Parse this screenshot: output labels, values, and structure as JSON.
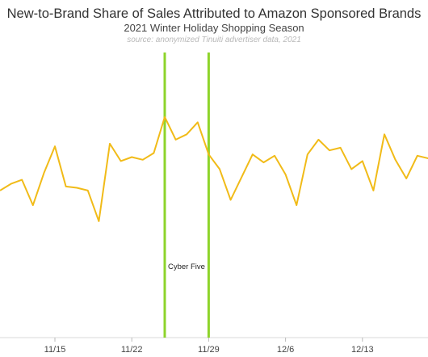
{
  "chart_data": {
    "type": "line",
    "title": "New-to-Brand Share of Sales Attributed to Amazon Sponsored Brands",
    "subtitle": "2021 Winter Holiday Shopping Season",
    "source": "source: anonymized Tinuiti advertiser data, 2021",
    "xlabel": "",
    "ylabel": "",
    "x_ticks": [
      "11/15",
      "11/22",
      "11/29",
      "12/6",
      "12/13"
    ],
    "x": [
      "11/10",
      "11/11",
      "11/12",
      "11/13",
      "11/14",
      "11/15",
      "11/16",
      "11/17",
      "11/18",
      "11/19",
      "11/20",
      "11/21",
      "11/22",
      "11/23",
      "11/24",
      "11/25",
      "11/26",
      "11/27",
      "11/28",
      "11/29",
      "11/30",
      "12/1",
      "12/2",
      "12/3",
      "12/4",
      "12/5",
      "12/6",
      "12/7",
      "12/8",
      "12/9",
      "12/10",
      "12/11",
      "12/12",
      "12/13",
      "12/14",
      "12/15",
      "12/16",
      "12/17",
      "12/18",
      "12/19",
      "12/20"
    ],
    "series": [
      {
        "values": [
          35,
          40,
          43,
          24,
          48,
          68,
          38,
          37,
          35,
          12,
          70,
          57,
          60,
          58,
          63,
          90,
          73,
          77,
          86,
          62,
          51,
          28,
          45,
          62,
          56,
          61,
          47,
          24,
          62,
          73,
          65,
          67,
          51,
          57,
          35,
          77,
          58,
          44,
          61,
          59,
          55
        ],
        "color": "#f1bb18"
      }
    ],
    "ylim": [
      -75,
      140
    ],
    "grid": false,
    "legend": "none",
    "reference_lines": [
      {
        "x": "11/25",
        "color": "#8ed42b",
        "label": "Cyber Five"
      },
      {
        "x": "11/29",
        "color": "#8ed42b",
        "label": ""
      }
    ]
  }
}
